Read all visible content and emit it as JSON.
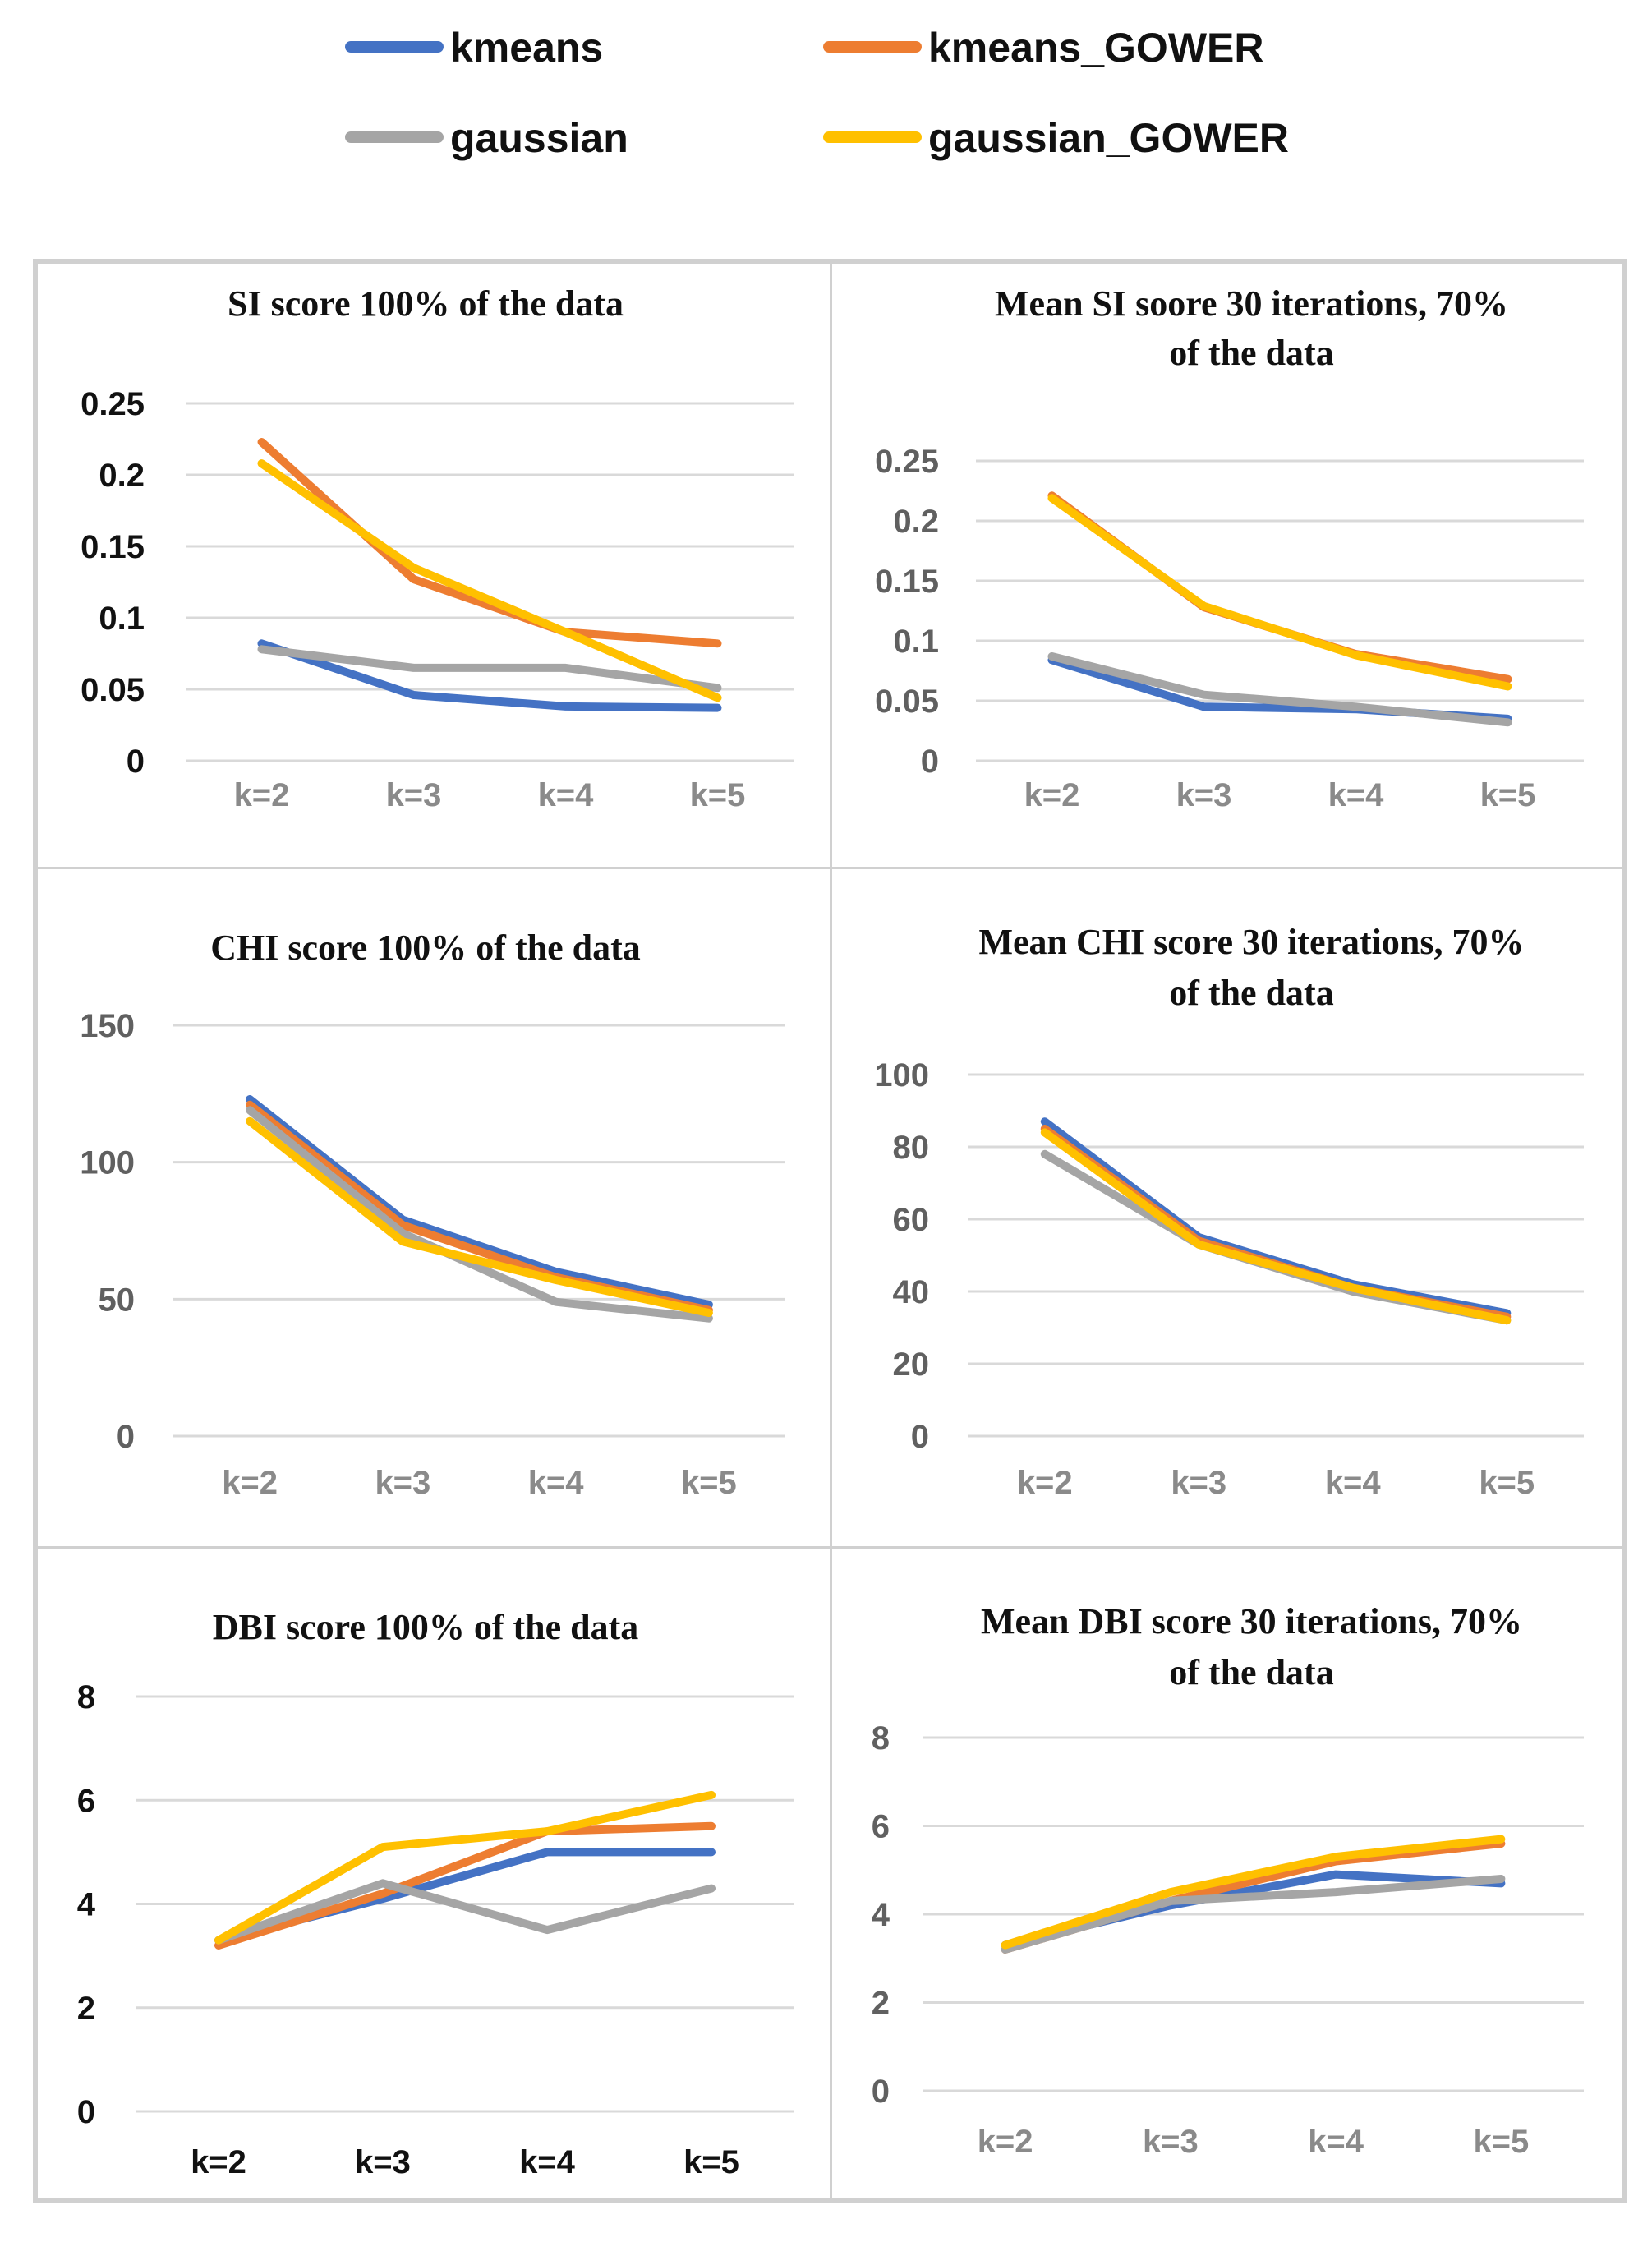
{
  "legend": {
    "items": [
      {
        "name": "kmeans",
        "color": "#4472C4"
      },
      {
        "name": "kmeans_GOWER",
        "color": "#ED7D31"
      },
      {
        "name": "gaussian",
        "color": "#A5A5A5"
      },
      {
        "name": "gaussian_GOWER",
        "color": "#FFC000"
      }
    ]
  },
  "chart_data": [
    {
      "type": "line",
      "title": "SI score 100% of the data",
      "categories": [
        "k=2",
        "k=3",
        "k=4",
        "k=5"
      ],
      "yticks": [
        "0",
        "0.05",
        "0.1",
        "0.15",
        "0.2",
        "0.25"
      ],
      "ylim": [
        0,
        0.25
      ],
      "ytick_color": "#111111",
      "xtick_color": "#8a8a8a",
      "series": [
        {
          "name": "kmeans",
          "values": [
            0.082,
            0.046,
            0.038,
            0.037
          ]
        },
        {
          "name": "kmeans_GOWER",
          "values": [
            0.223,
            0.127,
            0.09,
            0.082
          ]
        },
        {
          "name": "gaussian",
          "values": [
            0.078,
            0.065,
            0.065,
            0.051
          ]
        },
        {
          "name": "gaussian_GOWER",
          "values": [
            0.208,
            0.135,
            0.09,
            0.044
          ]
        }
      ]
    },
    {
      "type": "line",
      "title": "Mean SI soore 30 iterations, 70% of the data",
      "categories": [
        "k=2",
        "k=3",
        "k=4",
        "k=5"
      ],
      "yticks": [
        "0",
        "0.05",
        "0.1",
        "0.15",
        "0.2",
        "0.25"
      ],
      "ylim": [
        0,
        0.25
      ],
      "ytick_color": "#606060",
      "xtick_color": "#8a8a8a",
      "series": [
        {
          "name": "kmeans",
          "values": [
            0.084,
            0.045,
            0.043,
            0.035
          ]
        },
        {
          "name": "kmeans_GOWER",
          "values": [
            0.221,
            0.128,
            0.089,
            0.068
          ]
        },
        {
          "name": "gaussian",
          "values": [
            0.087,
            0.055,
            0.045,
            0.032
          ]
        },
        {
          "name": "gaussian_GOWER",
          "values": [
            0.219,
            0.129,
            0.088,
            0.062
          ]
        }
      ]
    },
    {
      "type": "line",
      "title": "CHI score 100% of the data",
      "categories": [
        "k=2",
        "k=3",
        "k=4",
        "k=5"
      ],
      "yticks": [
        "0",
        "50",
        "100",
        "150"
      ],
      "ylim": [
        0,
        150
      ],
      "ytick_color": "#606060",
      "xtick_color": "#8a8a8a",
      "series": [
        {
          "name": "kmeans",
          "values": [
            123,
            79,
            60,
            48
          ]
        },
        {
          "name": "kmeans_GOWER",
          "values": [
            121,
            77,
            58,
            46
          ]
        },
        {
          "name": "gaussian",
          "values": [
            119,
            74,
            49,
            43
          ]
        },
        {
          "name": "gaussian_GOWER",
          "values": [
            115,
            71,
            57,
            45
          ]
        }
      ]
    },
    {
      "type": "line",
      "title": "Mean CHI score 30 iterations, 70% of the data",
      "categories": [
        "k=2",
        "k=3",
        "k=4",
        "k=5"
      ],
      "yticks": [
        "0",
        "20",
        "40",
        "60",
        "80",
        "100"
      ],
      "ylim": [
        0,
        100
      ],
      "ytick_color": "#606060",
      "xtick_color": "#8a8a8a",
      "series": [
        {
          "name": "kmeans",
          "values": [
            87,
            55,
            42,
            34
          ]
        },
        {
          "name": "kmeans_GOWER",
          "values": [
            85,
            54,
            41,
            33
          ]
        },
        {
          "name": "gaussian",
          "values": [
            78,
            53,
            40,
            32
          ]
        },
        {
          "name": "gaussian_GOWER",
          "values": [
            84,
            53,
            41,
            32
          ]
        }
      ]
    },
    {
      "type": "line",
      "title": "DBI score 100% of the data",
      "categories": [
        "k=2",
        "k=3",
        "k=4",
        "k=5"
      ],
      "yticks": [
        "0",
        "2",
        "4",
        "6",
        "8"
      ],
      "ylim": [
        0,
        8
      ],
      "ytick_color": "#111111",
      "xtick_color": "#111111",
      "series": [
        {
          "name": "kmeans",
          "values": [
            3.3,
            4.1,
            5.0,
            5.0
          ]
        },
        {
          "name": "kmeans_GOWER",
          "values": [
            3.2,
            4.2,
            5.4,
            5.5
          ]
        },
        {
          "name": "gaussian",
          "values": [
            3.3,
            4.4,
            3.5,
            4.3
          ]
        },
        {
          "name": "gaussian_GOWER",
          "values": [
            3.3,
            5.1,
            5.4,
            6.1
          ]
        }
      ]
    },
    {
      "type": "line",
      "title": "Mean DBI score 30 iterations, 70% of the data",
      "categories": [
        "k=2",
        "k=3",
        "k=4",
        "k=5"
      ],
      "yticks": [
        "0",
        "2",
        "4",
        "6",
        "8"
      ],
      "ylim": [
        0,
        8
      ],
      "ytick_color": "#606060",
      "xtick_color": "#8a8a8a",
      "series": [
        {
          "name": "kmeans",
          "values": [
            3.3,
            4.2,
            4.9,
            4.7
          ]
        },
        {
          "name": "kmeans_GOWER",
          "values": [
            3.2,
            4.3,
            5.2,
            5.6
          ]
        },
        {
          "name": "gaussian",
          "values": [
            3.2,
            4.3,
            4.5,
            4.8
          ]
        },
        {
          "name": "gaussian_GOWER",
          "values": [
            3.3,
            4.5,
            5.3,
            5.7
          ]
        }
      ]
    }
  ]
}
